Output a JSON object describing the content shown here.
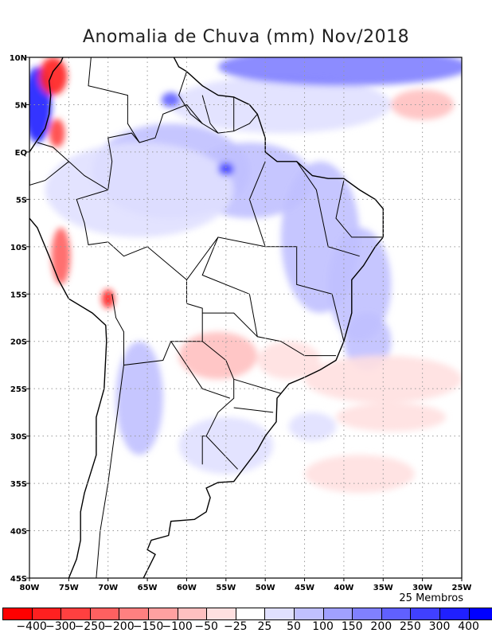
{
  "title": "Anomalia de Chuva (mm) Nov/2018",
  "members_label": "25 Membros",
  "chart_data": {
    "type": "heatmap",
    "title": "Anomalia de Chuva (mm) Nov/2018",
    "xlim": [
      -80,
      -25
    ],
    "ylim": [
      -45,
      10
    ],
    "x_ticks": [
      "80W",
      "75W",
      "70W",
      "65W",
      "60W",
      "55W",
      "50W",
      "45W",
      "40W",
      "35W",
      "30W",
      "25W"
    ],
    "y_ticks": [
      "10N",
      "5N",
      "EQ",
      "5S",
      "10S",
      "15S",
      "20S",
      "25S",
      "30S",
      "35S",
      "40S",
      "45S"
    ],
    "grid": true,
    "colorbar": {
      "labels": [
        "-400",
        "-300",
        "-250",
        "-200",
        "-150",
        "-100",
        "-50",
        "-25",
        "25",
        "50",
        "100",
        "150",
        "200",
        "250",
        "300",
        "400"
      ],
      "colors": [
        "#ff0000",
        "#ff2020",
        "#ff4040",
        "#ff6060",
        "#ff8080",
        "#ffa0a0",
        "#ffc0c0",
        "#ffe0e0",
        "#ffffff",
        "#e0e0ff",
        "#c0c0ff",
        "#a0a0ff",
        "#8080ff",
        "#6060ff",
        "#4040ff",
        "#2020ff",
        "#0000ff"
      ]
    },
    "anomaly_features": [
      {
        "lon": -62,
        "lat": -2,
        "rx": 10,
        "ry": 5,
        "value": 60
      },
      {
        "lon": -52,
        "lat": -3,
        "rx": 8,
        "ry": 4,
        "value": 70
      },
      {
        "lon": -43,
        "lat": -9,
        "rx": 5,
        "ry": 8,
        "value": 80
      },
      {
        "lon": -38,
        "lat": -14,
        "rx": 4,
        "ry": 6,
        "value": 70
      },
      {
        "lon": -37,
        "lat": -20,
        "rx": 3,
        "ry": 3,
        "value": 60
      },
      {
        "lon": -66,
        "lat": -4,
        "rx": 12,
        "ry": 5,
        "value": 40
      },
      {
        "lon": -48,
        "lat": 5,
        "rx": 14,
        "ry": 3,
        "value": 40
      },
      {
        "lon": -40,
        "lat": 9,
        "rx": 16,
        "ry": 2,
        "value": 150
      },
      {
        "lon": -30,
        "lat": 5,
        "rx": 4,
        "ry": 1.6,
        "value": -100
      },
      {
        "lon": -55,
        "lat": -1.8,
        "rx": 1,
        "ry": 0.7,
        "value": 250
      },
      {
        "lon": -62,
        "lat": 5.5,
        "rx": 1.2,
        "ry": 0.8,
        "value": 200
      },
      {
        "lon": -79,
        "lat": 5,
        "rx": 1.8,
        "ry": 4,
        "value": 350
      },
      {
        "lon": -77,
        "lat": 8,
        "rx": 1.8,
        "ry": 2,
        "value": -350
      },
      {
        "lon": -76.5,
        "lat": 2,
        "rx": 1,
        "ry": 1.5,
        "value": -300
      },
      {
        "lon": -76,
        "lat": -11,
        "rx": 1.2,
        "ry": 3,
        "value": -250
      },
      {
        "lon": -70,
        "lat": -15.5,
        "rx": 0.8,
        "ry": 1,
        "value": -350
      },
      {
        "lon": -56,
        "lat": -21.5,
        "rx": 5,
        "ry": 2.5,
        "value": -60
      },
      {
        "lon": -47,
        "lat": -22,
        "rx": 4,
        "ry": 2,
        "value": -40
      },
      {
        "lon": -35,
        "lat": -24,
        "rx": 10,
        "ry": 2.5,
        "value": -50
      },
      {
        "lon": -34,
        "lat": -28,
        "rx": 7,
        "ry": 1.5,
        "value": -40
      },
      {
        "lon": -38,
        "lat": -34,
        "rx": 7,
        "ry": 2,
        "value": -30
      },
      {
        "lon": -66,
        "lat": -26,
        "rx": 3,
        "ry": 6,
        "value": 50
      },
      {
        "lon": -55,
        "lat": -31,
        "rx": 6,
        "ry": 3,
        "value": 40
      },
      {
        "lon": -44,
        "lat": -29,
        "rx": 3,
        "ry": 1.5,
        "value": 40
      }
    ]
  }
}
